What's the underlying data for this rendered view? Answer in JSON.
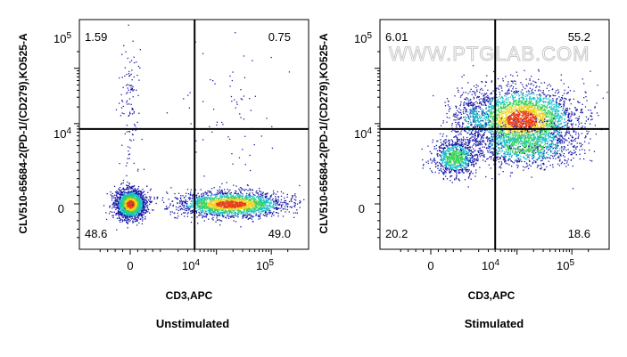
{
  "watermark": "WWW.PTGLAB.COM",
  "colors": {
    "low": "#1a1aa8",
    "mid": "#18c0c8",
    "midhigh": "#3cd25a",
    "high": "#f0d21e",
    "peak": "#e63c14",
    "frame": "#000000",
    "gate": "#000000"
  },
  "chart_data": [
    {
      "type": "scatter",
      "subtype": "flow-cytometry-density",
      "caption": "Unstimulated",
      "xlabel": "CD3,APC",
      "ylabel": "CLV510-65684-2(PD-1/(CD279),KO525-A",
      "x_scale": "biexponential",
      "y_scale": "biexponential",
      "x_ticks": [
        {
          "label": "0",
          "value": 0
        },
        {
          "label": "10^4",
          "value": 10000
        },
        {
          "label": "10^5",
          "value": 100000
        }
      ],
      "y_ticks": [
        {
          "label": "0",
          "value": 0
        },
        {
          "label": "10^4",
          "value": 10000
        },
        {
          "label": "10^5",
          "value": 100000
        }
      ],
      "gate": {
        "x": 4000,
        "y": 8000
      },
      "quadrants": {
        "top_left": "1.59",
        "top_right": "0.75",
        "bottom_left": "48.6",
        "bottom_right": "49.0"
      },
      "populations": [
        {
          "name_hint": "CD3- PD-1-",
          "x": 0,
          "y": 0,
          "weight": 0.486
        },
        {
          "name_hint": "CD3+ PD-1-",
          "x": 18000,
          "y": 0,
          "weight": 0.49
        },
        {
          "name_hint": "CD3- PD-1+",
          "x": 0,
          "y": 20000,
          "weight": 0.016
        },
        {
          "name_hint": "CD3+ PD-1+",
          "x": 18000,
          "y": 20000,
          "weight": 0.0075
        }
      ]
    },
    {
      "type": "scatter",
      "subtype": "flow-cytometry-density",
      "caption": "Stimulated",
      "xlabel": "CD3,APC",
      "ylabel": "CLV510-65684-2(PD-1/(CD279),KO525-A",
      "x_scale": "biexponential",
      "y_scale": "biexponential",
      "x_ticks": [
        {
          "label": "0",
          "value": 0
        },
        {
          "label": "10^4",
          "value": 10000
        },
        {
          "label": "10^5",
          "value": 100000
        }
      ],
      "y_ticks": [
        {
          "label": "0",
          "value": 0
        },
        {
          "label": "10^4",
          "value": 10000
        },
        {
          "label": "10^5",
          "value": 100000
        }
      ],
      "gate": {
        "x": 4000,
        "y": 8000
      },
      "quadrants": {
        "top_left": "6.01",
        "top_right": "55.2",
        "bottom_left": "20.2",
        "bottom_right": "18.6"
      },
      "populations": [
        {
          "name_hint": "CD3- PD-1-",
          "x": 800,
          "y": 2500,
          "weight": 0.202
        },
        {
          "name_hint": "CD3+ PD-1+",
          "x": 12000,
          "y": 12000,
          "weight": 0.552
        },
        {
          "name_hint": "CD3+ PD-1-",
          "x": 14000,
          "y": 4000,
          "weight": 0.186
        },
        {
          "name_hint": "CD3- PD-1+",
          "x": 1500,
          "y": 12000,
          "weight": 0.06
        }
      ]
    }
  ]
}
